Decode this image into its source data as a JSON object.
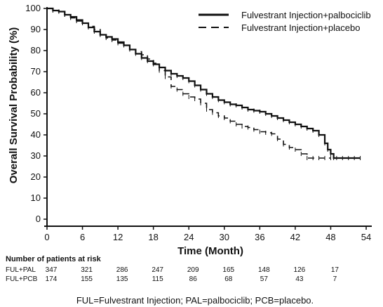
{
  "chart_data": {
    "type": "line",
    "title": "",
    "xlabel": "Time (Month)",
    "ylabel": "Overall Survival Probability (%)",
    "xlim": [
      0,
      54
    ],
    "ylim": [
      0,
      100
    ],
    "x_ticks": [
      0,
      6,
      12,
      18,
      24,
      30,
      36,
      42,
      48,
      54
    ],
    "y_ticks": [
      0,
      10,
      20,
      30,
      40,
      50,
      60,
      70,
      80,
      90,
      100
    ],
    "grid": false,
    "legend_position": "top-right",
    "series": [
      {
        "name": "Fulvestrant Injection+palbociclib",
        "style": "solid",
        "color": "#111111",
        "x": [
          0,
          1,
          2,
          3,
          4,
          5,
          6,
          7,
          8,
          9,
          10,
          11,
          12,
          13,
          14,
          15,
          16,
          17,
          18,
          19,
          20,
          21,
          22,
          23,
          24,
          25,
          26,
          27,
          28,
          29,
          30,
          31,
          32,
          33,
          34,
          35,
          36,
          37,
          38,
          39,
          40,
          41,
          42,
          43,
          44,
          45,
          46,
          47,
          47.5,
          48,
          48.5,
          49,
          50,
          51,
          52,
          53
        ],
        "y": [
          100,
          99,
          98.5,
          97,
          96,
          94.5,
          93,
          91,
          89,
          87.5,
          86.5,
          85.5,
          84,
          82.5,
          80.5,
          78.5,
          76.5,
          75,
          73.5,
          72,
          70.5,
          69,
          68,
          67,
          65.5,
          63.5,
          61.5,
          59.5,
          58,
          56.5,
          55.5,
          54.5,
          54,
          53,
          52,
          51.5,
          51,
          50,
          49,
          48,
          47,
          46,
          45,
          44,
          43,
          42,
          40,
          36,
          33,
          31,
          29,
          29,
          29,
          29,
          29,
          29
        ]
      },
      {
        "name": "Fulvestrant Injection+placebo",
        "style": "dashed",
        "color": "#111111",
        "x": [
          0,
          1,
          2,
          3,
          4,
          5,
          6,
          7,
          8,
          9,
          10,
          11,
          12,
          13,
          14,
          15,
          16,
          17,
          18,
          19,
          20,
          21,
          22,
          23,
          24,
          25,
          26,
          27,
          28,
          29,
          30,
          31,
          32,
          33,
          34,
          35,
          36,
          37,
          38,
          39,
          40,
          41,
          42,
          43,
          44,
          45,
          46,
          47,
          48
        ],
        "y": [
          100,
          99,
          98.5,
          97,
          95.5,
          94,
          93,
          91.5,
          90,
          87.5,
          86,
          85,
          83.5,
          82.5,
          80.5,
          79.5,
          78,
          76,
          74,
          70.5,
          67.5,
          63,
          61.5,
          59.5,
          58,
          57,
          55,
          52,
          50.5,
          49,
          48,
          46.5,
          45,
          44,
          43.5,
          42.5,
          41.5,
          41,
          40.5,
          38,
          35.5,
          34,
          33,
          31,
          29,
          29,
          29,
          29,
          29
        ]
      }
    ],
    "risk_table": {
      "title": "Number of patients at risk",
      "time_points": [
        0,
        6,
        12,
        18,
        24,
        30,
        36,
        42,
        48
      ],
      "rows": [
        {
          "label": "FUL+PAL",
          "values": [
            347,
            321,
            286,
            247,
            209,
            165,
            148,
            126,
            17
          ]
        },
        {
          "label": "FUL+PCB",
          "values": [
            174,
            155,
            135,
            115,
            86,
            68,
            57,
            43,
            7
          ]
        }
      ]
    },
    "footnote": "FUL=Fulvestrant Injection; PAL=palbociclib; PCB=placebo."
  }
}
